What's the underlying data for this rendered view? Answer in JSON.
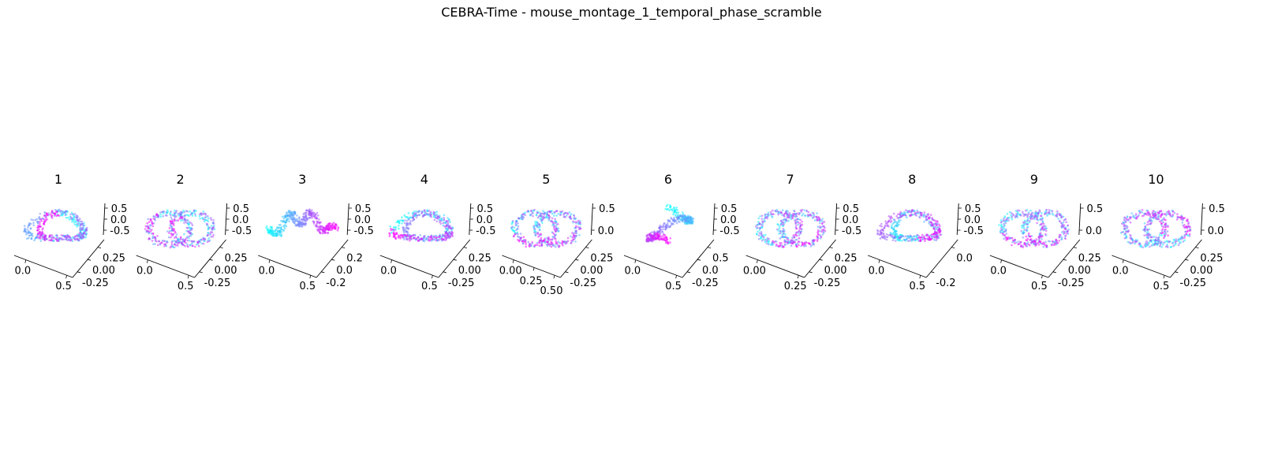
{
  "figure": {
    "title": "CEBRA-Time - mouse_montage_1_temporal_phase_scramble"
  },
  "colormap": {
    "name": "cool",
    "start": "#00ffff",
    "end": "#ff00ff"
  },
  "chart_data": [
    {
      "type": "scatter",
      "title": "1",
      "panel": 1,
      "x_ticks": [
        "0.0",
        "0.5"
      ],
      "y_ticks": [
        "0.25",
        "0.00",
        "-0.25"
      ],
      "z_ticks": [
        "0.5",
        "0.0",
        "-0.5"
      ],
      "shape": "ring",
      "seed": 11
    },
    {
      "type": "scatter",
      "title": "2",
      "panel": 2,
      "x_ticks": [
        "0.0",
        "0.5"
      ],
      "y_ticks": [
        "0.25",
        "0.00",
        "-0.25"
      ],
      "z_ticks": [
        "0.5",
        "0.0",
        "-0.5"
      ],
      "shape": "double-ring",
      "seed": 23
    },
    {
      "type": "scatter",
      "title": "3",
      "panel": 3,
      "x_ticks": [
        "0.0",
        "0.5"
      ],
      "y_ticks": [
        "0.2",
        "0.0",
        "-0.2"
      ],
      "z_ticks": [
        "0.5",
        "0.0",
        "-0.5"
      ],
      "shape": "arch",
      "seed": 37
    },
    {
      "type": "scatter",
      "title": "4",
      "panel": 4,
      "x_ticks": [
        "0.0",
        "0.5"
      ],
      "y_ticks": [
        "0.25",
        "0.00",
        "-0.25"
      ],
      "z_ticks": [
        "0.5",
        "0.0",
        "-0.5"
      ],
      "shape": "ring",
      "seed": 41
    },
    {
      "type": "scatter",
      "title": "5",
      "panel": 5,
      "x_ticks": [
        "0.00",
        "0.25",
        "0.50"
      ],
      "y_ticks": [
        "0.25",
        "0.00",
        "-0.25"
      ],
      "z_ticks": [
        "0.5",
        "0.0"
      ],
      "shape": "double-ring",
      "seed": 53
    },
    {
      "type": "scatter",
      "title": "6",
      "panel": 6,
      "x_ticks": [
        "0.0",
        "0.5"
      ],
      "y_ticks": [
        "0.5",
        "0.0",
        "-0.25"
      ],
      "z_ticks": [
        "0.5",
        "0.0",
        "-0.5"
      ],
      "shape": "loop",
      "seed": 67
    },
    {
      "type": "scatter",
      "title": "7",
      "panel": 7,
      "x_ticks": [
        "0.00",
        "0.25"
      ],
      "y_ticks": [
        "0.25",
        "0.00",
        "-0.25"
      ],
      "z_ticks": [
        "0.5",
        "0.0",
        "-0.5"
      ],
      "shape": "double-ring",
      "seed": 71
    },
    {
      "type": "scatter",
      "title": "8",
      "panel": 8,
      "x_ticks": [
        "0.0",
        "0.5"
      ],
      "y_ticks": [
        "0.0",
        "-0.2"
      ],
      "z_ticks": [
        "0.5",
        "0.0",
        "-0.5"
      ],
      "shape": "ring",
      "seed": 83
    },
    {
      "type": "scatter",
      "title": "9",
      "panel": 9,
      "x_ticks": [
        "0.0",
        "0.5"
      ],
      "y_ticks": [
        "0.25",
        "0.00",
        "-0.25"
      ],
      "z_ticks": [
        "0.5",
        "0.0"
      ],
      "shape": "double-ring",
      "seed": 97
    },
    {
      "type": "scatter",
      "title": "10",
      "panel": 10,
      "x_ticks": [
        "0.0",
        "0.5"
      ],
      "y_ticks": [
        "0.25",
        "0.00",
        "-0.25"
      ],
      "z_ticks": [
        "0.5",
        "0.0"
      ],
      "shape": "double-ring",
      "seed": 101
    }
  ]
}
